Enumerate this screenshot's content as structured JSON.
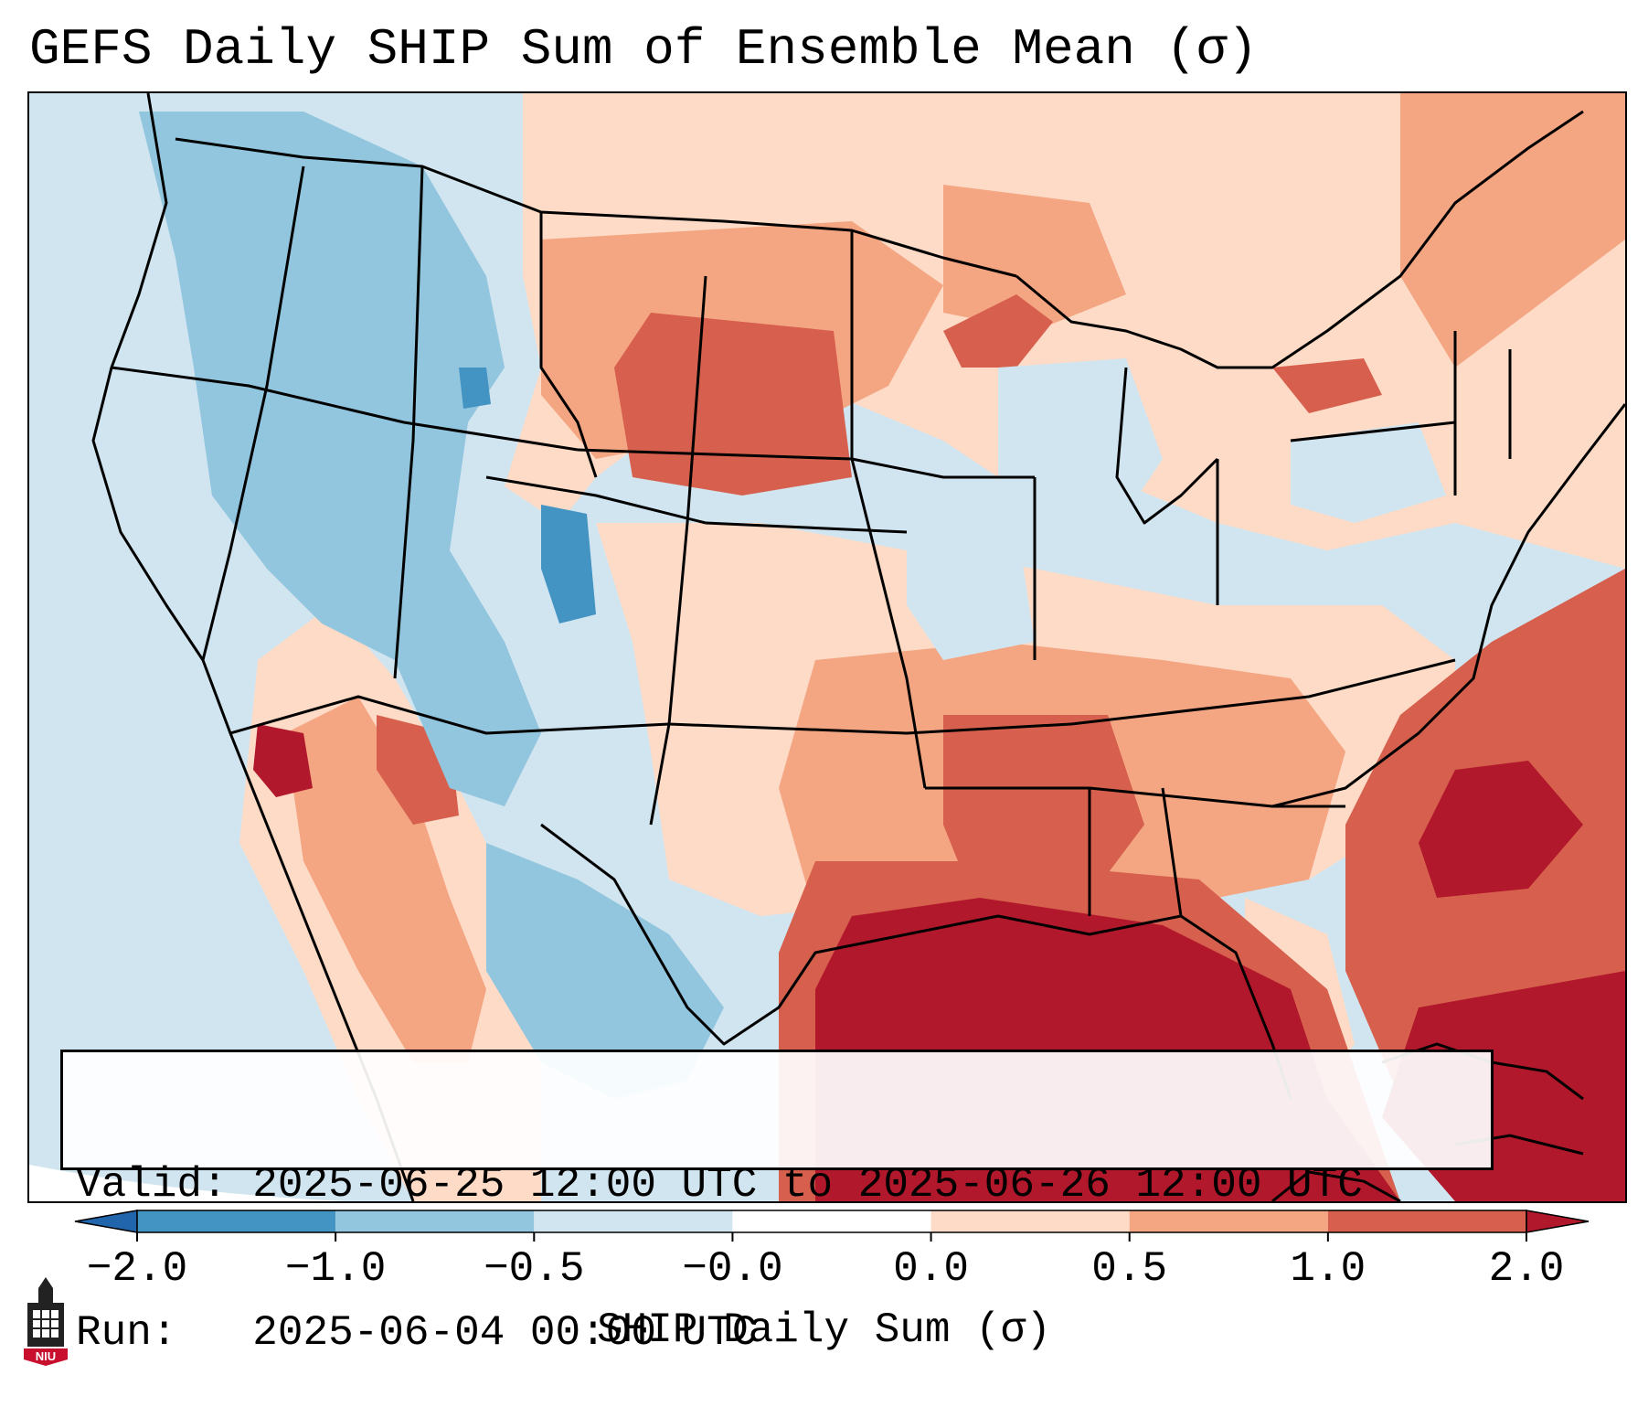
{
  "title": "GEFS Daily SHIP Sum of Ensemble Mean (σ)",
  "info": {
    "valid_label": "Valid:",
    "valid_value": "2025-06-25 12:00 UTC to 2025-06-26 12:00 UTC",
    "run_label": "Run:",
    "run_value": "2025-06-04 00:00 UTC"
  },
  "colorbar": {
    "label": "SHIP Daily Sum (σ)",
    "ticks": [
      "−2.0",
      "−1.0",
      "−0.5",
      "−0.0",
      "0.0",
      "0.5",
      "1.0",
      "2.0"
    ],
    "bins": [
      {
        "range": "< -2.0",
        "color": "#2166ac"
      },
      {
        "range": "-2.0 to -1.0",
        "color": "#4393c3"
      },
      {
        "range": "-1.0 to -0.5",
        "color": "#92c5de"
      },
      {
        "range": "-0.5 to -0.0",
        "color": "#d1e5f0"
      },
      {
        "range": "-0.0 to 0.0",
        "color": "#ffffff"
      },
      {
        "range": "0.0 to 0.5",
        "color": "#fddbc7"
      },
      {
        "range": "0.5 to 1.0",
        "color": "#f4a582"
      },
      {
        "range": "1.0 to 2.0",
        "color": "#d6604d"
      },
      {
        "range": "> 2.0",
        "color": "#b2182b"
      }
    ]
  },
  "logo": {
    "text": "NIU"
  }
}
